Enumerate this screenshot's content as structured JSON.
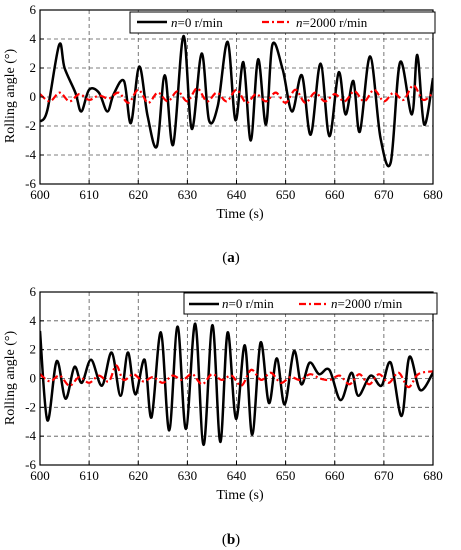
{
  "chart_data": [
    {
      "type": "line",
      "panel_label": "a",
      "xlabel": "Time (s)",
      "ylabel": "Rolling angle (°)",
      "xlim": [
        600,
        680
      ],
      "ylim": [
        -6,
        6
      ],
      "x_ticks": [
        600,
        610,
        620,
        630,
        640,
        650,
        660,
        670,
        680
      ],
      "y_ticks": [
        -6,
        -4,
        -2,
        0,
        2,
        4,
        6
      ],
      "grid": "dashed",
      "legend_position": "top-right",
      "series": [
        {
          "name": "n=0 r/min",
          "name_var": "n",
          "name_rest": "=0 r/min",
          "color": "#000000",
          "style": "solid",
          "x": [
            600,
            601.5,
            603.9,
            605,
            607.2,
            608.4,
            610,
            612,
            613.7,
            615,
            617.1,
            618.5,
            620.2,
            621.9,
            623.8,
            625.4,
            627.1,
            629.2,
            630.9,
            632.9,
            634.4,
            636.2,
            638.2,
            639.8,
            641.4,
            642.9,
            644.4,
            646,
            647.3,
            649.4,
            651.3,
            653.3,
            655.1,
            657.1,
            658.9,
            660.8,
            662.2,
            663.8,
            665.1,
            667.2,
            669.3,
            671.4,
            673.3,
            675.7,
            676.8,
            678.2,
            680
          ],
          "y": [
            -1.7,
            -0.9,
            3.6,
            2.0,
            0.3,
            -1.0,
            0.5,
            0.3,
            -1.0,
            0.2,
            1.1,
            -1.8,
            2.1,
            -1.3,
            -3.4,
            1.5,
            -3.3,
            4.2,
            -2.2,
            3.0,
            -1.6,
            -0.6,
            3.8,
            -1.6,
            2.4,
            -3.0,
            2.6,
            -1.9,
            3.6,
            1.9,
            -1.0,
            1.5,
            -2.6,
            2.3,
            -2.7,
            1.7,
            -1.2,
            1.1,
            -2.4,
            2.8,
            -2.8,
            -4.5,
            2.4,
            -1.2,
            2.9,
            -1.9,
            1.3
          ]
        },
        {
          "name": "n=2000 r/min",
          "name_var": "n",
          "name_rest": "=2000 r/min",
          "color": "#ff0000",
          "style": "dashdot",
          "x": [
            600,
            602,
            604,
            606,
            608,
            610,
            612,
            614,
            616,
            618,
            620,
            622,
            624,
            626,
            628,
            630,
            632,
            634,
            636,
            638,
            640,
            642,
            644,
            646,
            648,
            650,
            652,
            654,
            656,
            658,
            660,
            662,
            664,
            666,
            668,
            670,
            672,
            674,
            676,
            678,
            680
          ],
          "y": [
            0.2,
            -0.3,
            0.3,
            -0.3,
            0.2,
            -0.2,
            0.1,
            -0.1,
            0.3,
            -0.4,
            0.5,
            -0.4,
            0.3,
            -0.3,
            0.4,
            -0.3,
            0.6,
            -0.3,
            0.3,
            -0.3,
            0.5,
            -0.4,
            0.2,
            -0.3,
            0.3,
            -0.4,
            0.5,
            -0.4,
            0.3,
            -0.3,
            0.2,
            -0.3,
            0.4,
            -0.3,
            0.5,
            -0.3,
            0.3,
            -0.2,
            0.8,
            -0.2,
            0.3
          ]
        }
      ]
    },
    {
      "type": "line",
      "panel_label": "b",
      "xlabel": "Time (s)",
      "ylabel": "Rolling angle (°)",
      "xlim": [
        600,
        680
      ],
      "ylim": [
        -6,
        6
      ],
      "x_ticks": [
        600,
        610,
        620,
        630,
        640,
        650,
        660,
        670,
        680
      ],
      "y_ticks": [
        -6,
        -4,
        -2,
        0,
        2,
        4,
        6
      ],
      "grid": "dashed",
      "legend_position": "top-right",
      "series": [
        {
          "name": "n=0 r/min",
          "name_var": "n",
          "name_rest": "=0 r/min",
          "color": "#000000",
          "style": "solid",
          "x": [
            600,
            601.5,
            603.4,
            605.2,
            607,
            608.5,
            610.4,
            612.6,
            614.6,
            616.4,
            617.9,
            619.4,
            621.3,
            622.7,
            624.6,
            626.3,
            628,
            629.7,
            631.6,
            633.3,
            635.1,
            636.7,
            638.2,
            639.9,
            641.7,
            643.2,
            644.9,
            646.6,
            648.2,
            649.8,
            651.7,
            653.2,
            654.9,
            656.8,
            658.9,
            661.2,
            663.4,
            664.8,
            667.3,
            669.5,
            671.4,
            673.6,
            675.2,
            677.4,
            680
          ],
          "y": [
            3.3,
            -2.9,
            1.2,
            -1.4,
            0.8,
            -0.3,
            1.3,
            -0.5,
            1.8,
            -1.2,
            1.8,
            -1.1,
            1.3,
            -2.7,
            3.2,
            -3.6,
            3.6,
            -3.5,
            3.8,
            -4.6,
            3.7,
            -4.4,
            3.2,
            -2.8,
            2.3,
            -3.9,
            2.5,
            -1.7,
            1.4,
            -1.8,
            1.9,
            -0.4,
            1.1,
            0.3,
            0.6,
            -1.5,
            0.4,
            -1.2,
            0.2,
            -0.5,
            1.1,
            -2.6,
            1.5,
            -0.8,
            0.4
          ]
        },
        {
          "name": "n=2000 r/min",
          "name_var": "n",
          "name_rest": "=2000 r/min",
          "color": "#ff0000",
          "style": "dashdot",
          "x": [
            600,
            602,
            604,
            606,
            608,
            610,
            612,
            614,
            615.5,
            617,
            619,
            621,
            623,
            625,
            627,
            629,
            631,
            633,
            635,
            637,
            639,
            641,
            643,
            645,
            647,
            649,
            651,
            653,
            655,
            657,
            659,
            661,
            663,
            665,
            667,
            669,
            671,
            673,
            675,
            677,
            680
          ],
          "y": [
            0.3,
            -0.2,
            0.2,
            -0.5,
            0.1,
            -0.3,
            0.2,
            -0.2,
            0.9,
            -0.1,
            0.3,
            -0.2,
            0.1,
            -0.3,
            0.2,
            -0.1,
            0.3,
            -0.4,
            0.3,
            -0.1,
            0.2,
            -0.5,
            0.6,
            -0.1,
            0.4,
            -0.3,
            0.1,
            -0.1,
            0.3,
            0.0,
            -0.1,
            0.2,
            -0.4,
            0.3,
            -0.4,
            0.3,
            -0.3,
            0.4,
            -0.6,
            0.3,
            0.5
          ]
        }
      ]
    }
  ]
}
